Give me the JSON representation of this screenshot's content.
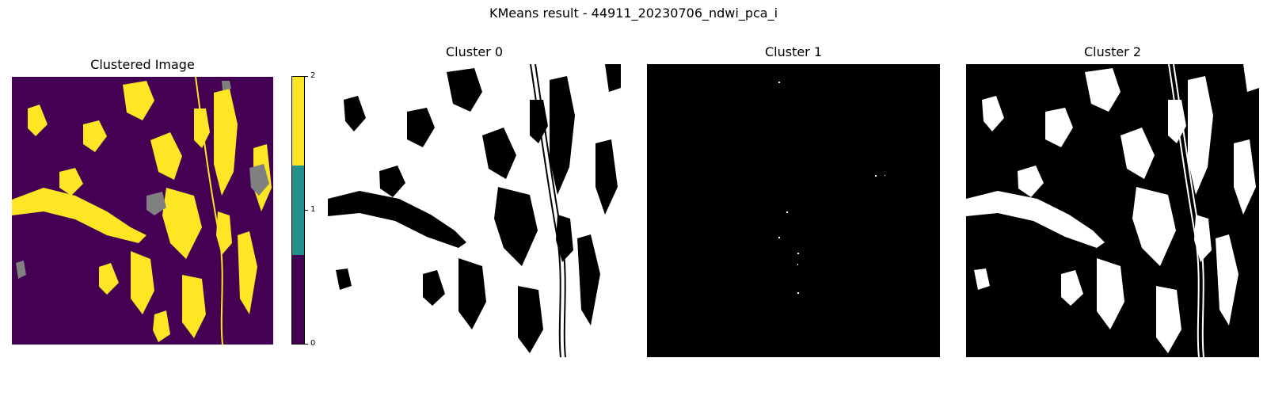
{
  "figure": {
    "title": "KMeans result - 44911_20230706_ndwi_pca_i"
  },
  "panels": {
    "clustered": {
      "title": "Clustered Image"
    },
    "cluster0": {
      "title": "Cluster 0"
    },
    "cluster1": {
      "title": "Cluster 1"
    },
    "cluster2": {
      "title": "Cluster 2"
    }
  },
  "colorbar": {
    "ticks": [
      "0",
      "1",
      "2"
    ],
    "colors": {
      "class0": "#440154",
      "class1": "#21918c",
      "class2": "#fde725"
    }
  },
  "mask_colors": {
    "on": "#ffffff",
    "off": "#000000",
    "nodata": "#808080"
  }
}
